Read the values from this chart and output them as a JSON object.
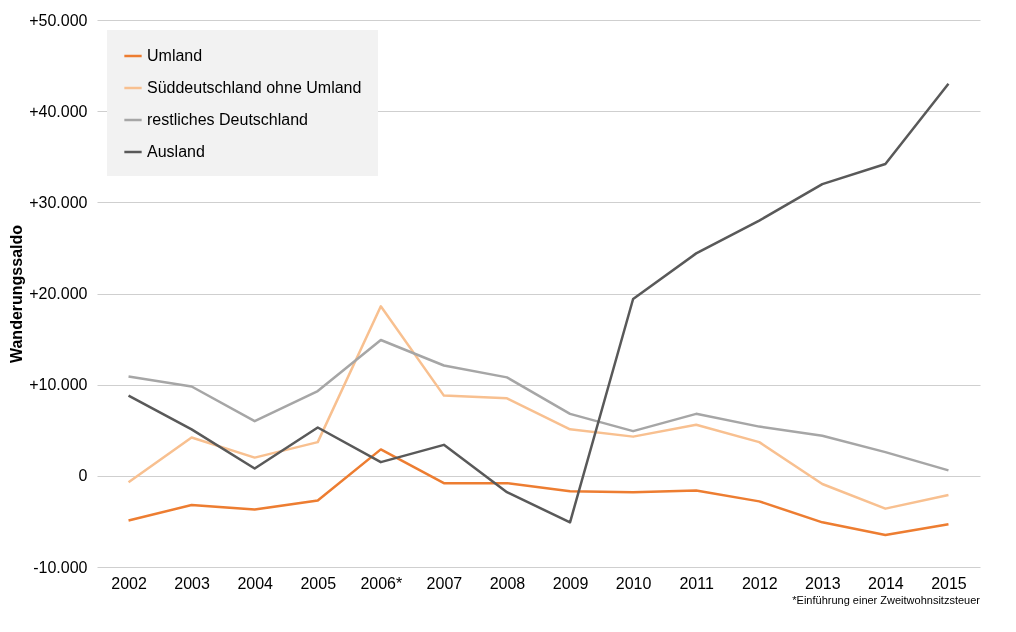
{
  "chart_data": {
    "type": "line",
    "ylabel": "Wanderungssaldo",
    "categories": [
      "2002",
      "2003",
      "2004",
      "2005",
      "2006*",
      "2007",
      "2008",
      "2009",
      "2010",
      "2011",
      "2012",
      "2013",
      "2014",
      "2015"
    ],
    "series": [
      {
        "name": "Umland",
        "color": "#ed7d31",
        "values": [
          -4900,
          -3200,
          -3700,
          -2700,
          2900,
          -800,
          -800,
          -1700,
          -1800,
          -1600,
          -2800,
          -5100,
          -6500,
          -5300
        ]
      },
      {
        "name": "Süddeutschland ohne Umland",
        "color": "#f8c090",
        "values": [
          -700,
          4200,
          2000,
          3700,
          18600,
          8800,
          8500,
          5100,
          4300,
          5600,
          3700,
          -900,
          -3600,
          -2100
        ]
      },
      {
        "name": "restliches Deutschland",
        "color": "#a6a6a6",
        "values": [
          10900,
          9800,
          6000,
          9300,
          14900,
          12100,
          10800,
          6800,
          4900,
          6800,
          5400,
          4400,
          2600,
          600
        ]
      },
      {
        "name": "Ausland",
        "color": "#595959",
        "values": [
          8800,
          5100,
          800,
          5300,
          1500,
          3400,
          -1800,
          -5100,
          19400,
          24400,
          28000,
          32000,
          34200,
          43000
        ]
      }
    ],
    "ylim": [
      -10000,
      50000
    ],
    "yticks": [
      {
        "value": -10000,
        "label": "-10.000"
      },
      {
        "value": 0,
        "label": "0"
      },
      {
        "value": 10000,
        "label": "+10.000"
      },
      {
        "value": 20000,
        "label": "+20.000"
      },
      {
        "value": 30000,
        "label": "+30.000"
      },
      {
        "value": 40000,
        "label": "+40.000"
      },
      {
        "value": 50000,
        "label": "+50.000"
      }
    ],
    "grid": "y",
    "legend": "top left",
    "line_style": "solid",
    "annotations": [
      "*Einführung einer Zweitwohnsitzsteuer"
    ]
  }
}
